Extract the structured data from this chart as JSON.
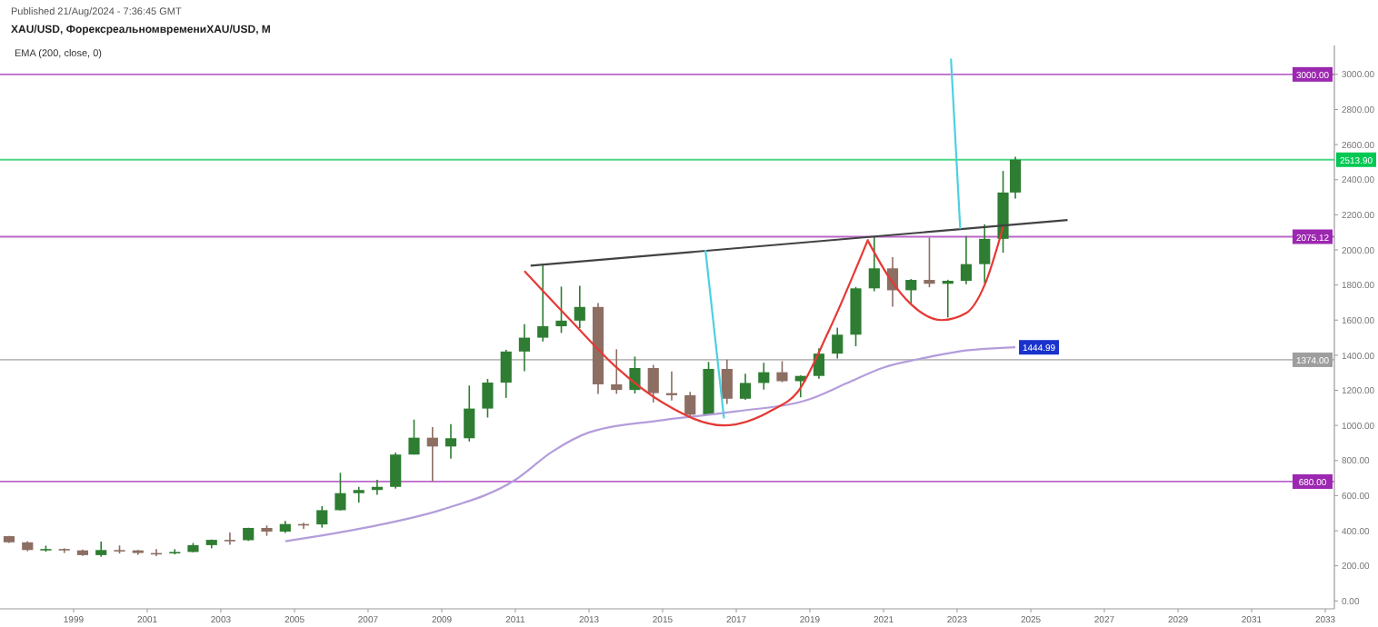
{
  "chart_data": {
    "type": "candlestick",
    "title": "XAU/USD, ФорексреальномвремениXAU/USD, M",
    "subtitle": "EMA (200, close, 0)",
    "annotations": [
      "Published 21/Aug/2024 - 7:36:45 GMT",
      {
        "text": "1444.99",
        "x": "2024-08",
        "y": 1444.99
      }
    ],
    "x": [
      "1997-04",
      "1997-10",
      "1998-04",
      "1998-10",
      "1999-04",
      "1999-10",
      "2000-04",
      "2000-10",
      "2001-04",
      "2001-10",
      "2002-04",
      "2002-10",
      "2003-04",
      "2003-10",
      "2004-04",
      "2004-10",
      "2005-04",
      "2005-10",
      "2006-04",
      "2006-10",
      "2007-04",
      "2007-10",
      "2008-04",
      "2008-10",
      "2009-04",
      "2009-10",
      "2010-04",
      "2010-10",
      "2011-04",
      "2011-10",
      "2012-04",
      "2012-10",
      "2013-04",
      "2013-10",
      "2014-04",
      "2014-10",
      "2015-04",
      "2015-10",
      "2016-04",
      "2016-10",
      "2017-04",
      "2017-10",
      "2018-04",
      "2018-10",
      "2019-04",
      "2019-10",
      "2020-04",
      "2020-10",
      "2021-04",
      "2021-10",
      "2022-04",
      "2022-10",
      "2023-04",
      "2023-10",
      "2024-04",
      "2024-08"
    ],
    "ohlc": [
      [
        369,
        370,
        330,
        334
      ],
      [
        334,
        340,
        283,
        290
      ],
      [
        290,
        315,
        280,
        296
      ],
      [
        296,
        300,
        273,
        288
      ],
      [
        288,
        293,
        256,
        261
      ],
      [
        261,
        338,
        252,
        290
      ],
      [
        290,
        316,
        270,
        288
      ],
      [
        288,
        290,
        263,
        273
      ],
      [
        273,
        295,
        255,
        271
      ],
      [
        271,
        295,
        265,
        279
      ],
      [
        279,
        330,
        277,
        318
      ],
      [
        318,
        350,
        300,
        348
      ],
      [
        348,
        390,
        320,
        346
      ],
      [
        346,
        417,
        342,
        416
      ],
      [
        416,
        430,
        371,
        395
      ],
      [
        395,
        456,
        387,
        438
      ],
      [
        438,
        445,
        410,
        436
      ],
      [
        436,
        540,
        418,
        517
      ],
      [
        517,
        730,
        515,
        614
      ],
      [
        614,
        650,
        560,
        632
      ],
      [
        632,
        690,
        605,
        650
      ],
      [
        650,
        845,
        640,
        834
      ],
      [
        834,
        1033,
        834,
        930
      ],
      [
        930,
        990,
        681,
        880
      ],
      [
        880,
        1007,
        810,
        927
      ],
      [
        927,
        1227,
        908,
        1096
      ],
      [
        1096,
        1265,
        1045,
        1244
      ],
      [
        1244,
        1431,
        1157,
        1421
      ],
      [
        1421,
        1577,
        1309,
        1500
      ],
      [
        1500,
        1921,
        1478,
        1565
      ],
      [
        1565,
        1791,
        1527,
        1597
      ],
      [
        1597,
        1796,
        1555,
        1675
      ],
      [
        1675,
        1697,
        1180,
        1234
      ],
      [
        1234,
        1434,
        1180,
        1202
      ],
      [
        1202,
        1392,
        1182,
        1327
      ],
      [
        1327,
        1345,
        1131,
        1184
      ],
      [
        1184,
        1307,
        1142,
        1172
      ],
      [
        1172,
        1191,
        1046,
        1061
      ],
      [
        1061,
        1362,
        1061,
        1322
      ],
      [
        1322,
        1375,
        1123,
        1152
      ],
      [
        1152,
        1295,
        1146,
        1242
      ],
      [
        1242,
        1357,
        1204,
        1303
      ],
      [
        1303,
        1366,
        1246,
        1252
      ],
      [
        1252,
        1285,
        1160,
        1282
      ],
      [
        1282,
        1439,
        1266,
        1409
      ],
      [
        1409,
        1557,
        1381,
        1517
      ],
      [
        1517,
        1789,
        1451,
        1781
      ],
      [
        1781,
        2075,
        1764,
        1895
      ],
      [
        1895,
        1959,
        1677,
        1770
      ],
      [
        1770,
        1834,
        1690,
        1829
      ],
      [
        1829,
        2070,
        1787,
        1807
      ],
      [
        1807,
        1830,
        1615,
        1824
      ],
      [
        1824,
        2079,
        1805,
        1919
      ],
      [
        1919,
        2146,
        1810,
        2063
      ],
      [
        2063,
        2450,
        1984,
        2327
      ],
      [
        2327,
        2531,
        2293,
        2513.9
      ]
    ],
    "series": [
      {
        "type": "line",
        "color": "#b39ddb",
        "x": [
          "2004-10",
          "2007-01",
          "2009-01",
          "2011-01",
          "2012-01",
          "2013-01",
          "2015-01",
          "2017-01",
          "2019-01",
          "2020-01",
          "2021-01",
          "2022-01",
          "2023-01",
          "2024-08"
        ],
        "values": [
          340,
          420,
          520,
          690,
          850,
          960,
          1030,
          1080,
          1150,
          1240,
          1330,
          1380,
          1420,
          1444.99
        ]
      },
      {
        "type": "line",
        "color": "#424242",
        "x": [
          "2011-06",
          "2026-01"
        ],
        "values": [
          1910,
          2170
        ]
      },
      {
        "type": "line",
        "color": "#e53935",
        "x": [
          "2011-04",
          "2012-07",
          "2013-10",
          "2015-01",
          "2016-09",
          "2018-01",
          "2018-09",
          "2019-07",
          "2020-08"
        ],
        "values": [
          1880,
          1600,
          1330,
          1130,
          1000,
          1090,
          1190,
          1530,
          2060
        ]
      },
      {
        "type": "line",
        "color": "#e53935",
        "x": [
          "2020-08",
          "2021-03",
          "2021-10",
          "2022-08",
          "2023-04",
          "2023-10",
          "2024-04"
        ],
        "values": [
          2050,
          1840,
          1690,
          1600,
          1640,
          1800,
          2130
        ]
      },
      {
        "type": "line",
        "color": "#4dd0e1",
        "x": [
          "2016-03",
          "2016-09"
        ],
        "values": [
          2000,
          1040
        ]
      },
      {
        "type": "line",
        "color": "#4dd0e1",
        "x": [
          "2022-11",
          "2023-02"
        ],
        "values": [
          3090,
          2120
        ]
      }
    ],
    "ref_lines": [
      {
        "axis": "y",
        "value": 3000,
        "label": "3000.00",
        "color": "#9c27b0"
      },
      {
        "axis": "y",
        "value": 2513.9,
        "label": "2513.90",
        "color": "#00c853"
      },
      {
        "axis": "y",
        "value": 2075.12,
        "label": "2075.12",
        "color": "#9c27b0"
      },
      {
        "axis": "y",
        "value": 1374,
        "label": "1374.00",
        "color": "#9e9e9e"
      },
      {
        "axis": "y",
        "value": 680,
        "label": "680.00",
        "color": "#9c27b0"
      }
    ],
    "xlim": [
      "1997-01",
      "2033-04"
    ],
    "xticks": [
      {
        "value": "1999",
        "label": "1999"
      },
      {
        "value": "2001",
        "label": "2001"
      },
      {
        "value": "2003",
        "label": "2003"
      },
      {
        "value": "2005",
        "label": "2005"
      },
      {
        "value": "2007",
        "label": "2007"
      },
      {
        "value": "2009",
        "label": "2009"
      },
      {
        "value": "2011",
        "label": "2011"
      },
      {
        "value": "2013",
        "label": "2013"
      },
      {
        "value": "2015",
        "label": "2015"
      },
      {
        "value": "2017",
        "label": "2017"
      },
      {
        "value": "2019",
        "label": "2019"
      },
      {
        "value": "2021",
        "label": "2021"
      },
      {
        "value": "2023",
        "label": "2023"
      },
      {
        "value": "2025",
        "label": "2025"
      },
      {
        "value": "2027",
        "label": "2027"
      },
      {
        "value": "2029",
        "label": "2029"
      },
      {
        "value": "2031",
        "label": "2031"
      },
      {
        "value": "2033",
        "label": "2033"
      }
    ],
    "ylim": [
      -45,
      3165
    ],
    "yticks": [
      {
        "value": 0,
        "label": "0.00"
      },
      {
        "value": 200,
        "label": "200.00"
      },
      {
        "value": 400,
        "label": "400.00"
      },
      {
        "value": 600,
        "label": "600.00"
      },
      {
        "value": 800,
        "label": "800.00"
      },
      {
        "value": 1000,
        "label": "1000.00"
      },
      {
        "value": 1200,
        "label": "1200.00"
      },
      {
        "value": 1400,
        "label": "1400.00"
      },
      {
        "value": 1600,
        "label": "1600.00"
      },
      {
        "value": 1800,
        "label": "1800.00"
      },
      {
        "value": 2000,
        "label": "2000.00"
      },
      {
        "value": 2200,
        "label": "2200.00"
      },
      {
        "value": 2400,
        "label": "2400.00"
      },
      {
        "value": 2600,
        "label": "2600.00"
      },
      {
        "value": 2800,
        "label": "2800.00"
      },
      {
        "value": 3000,
        "label": "3000.00"
      }
    ],
    "grid": false
  }
}
